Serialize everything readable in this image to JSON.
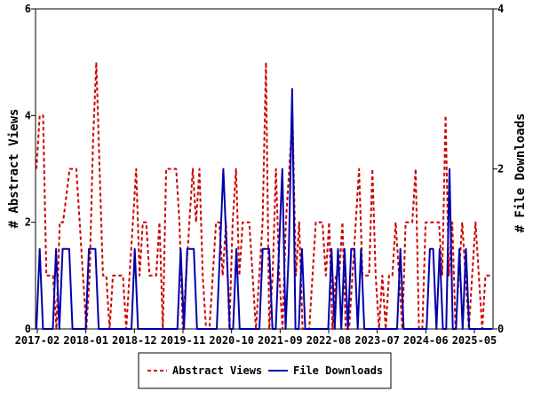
{
  "chart_data": {
    "type": "line",
    "x_tick_labels": [
      "2017-02",
      "2018-01",
      "2018-12",
      "2019-11",
      "2020-10",
      "2021-09",
      "2022-08",
      "2023-07",
      "2024-06",
      "2025-05"
    ],
    "ylabel_left": "# Abstract Views",
    "ylabel_right": "# File Downloads",
    "ylim_left": [
      0,
      6
    ],
    "ylim_right": [
      0,
      4
    ],
    "yticks_left": [
      "0",
      "2",
      "4",
      "6"
    ],
    "yticks_right": [
      "0",
      "2",
      "4"
    ],
    "legend_position": "bottom-center",
    "series": [
      {
        "name": "Abstract Views",
        "axis": "left",
        "color": "#cc0000",
        "style": "dashed",
        "values": [
          3,
          4,
          4,
          1,
          1,
          1,
          0,
          2,
          2,
          2.5,
          3,
          3,
          3,
          2,
          1,
          0,
          1,
          3.5,
          5,
          3,
          1,
          1,
          0,
          1,
          1,
          1,
          1,
          0,
          1,
          2,
          3,
          1,
          2,
          2,
          1,
          1,
          1,
          2,
          0,
          3,
          3,
          3,
          3,
          2,
          0,
          1,
          2,
          3,
          2,
          3,
          1,
          0,
          0,
          1,
          2,
          2,
          1,
          2,
          0,
          2,
          3,
          1,
          2,
          2,
          2,
          1,
          0,
          1,
          2,
          5,
          0,
          1,
          3,
          1,
          0,
          2,
          3,
          4,
          1,
          2,
          0,
          0,
          0,
          1,
          2,
          2,
          2,
          1,
          2,
          0,
          1,
          1,
          2,
          0,
          0,
          1,
          2,
          3,
          1,
          1,
          1,
          3,
          1,
          0,
          1,
          0,
          1,
          1,
          2,
          1,
          0,
          2,
          2,
          2,
          3,
          0,
          0,
          2,
          2,
          2,
          2,
          2,
          1,
          4,
          1,
          2,
          0,
          1,
          2,
          1,
          0,
          1,
          2,
          1,
          0,
          1,
          1,
          1
        ]
      },
      {
        "name": "File Downloads",
        "axis": "right",
        "color": "#0000aa",
        "style": "solid",
        "values": [
          0,
          1,
          0,
          0,
          0,
          0,
          1,
          0,
          1,
          1,
          1,
          0,
          0,
          0,
          0,
          0,
          1,
          1,
          1,
          0,
          0,
          0,
          0,
          0,
          0,
          0,
          0,
          0,
          0,
          0,
          1,
          0,
          0,
          0,
          0,
          0,
          0,
          0,
          0,
          0,
          0,
          0,
          0,
          0,
          1,
          0,
          1,
          1,
          1,
          0,
          0,
          0,
          0,
          0,
          0,
          0,
          1,
          2,
          1,
          0,
          0,
          1,
          0,
          0,
          0,
          0,
          0,
          0,
          0,
          1,
          1,
          1,
          0,
          0,
          1,
          2,
          0,
          1,
          3,
          0,
          0,
          1,
          0,
          0,
          0,
          0,
          0,
          0,
          0,
          0,
          1,
          0,
          1,
          0,
          1,
          0,
          1,
          1,
          0,
          1,
          0,
          0,
          0,
          0,
          0,
          0,
          0,
          0,
          0,
          0,
          0,
          1,
          0,
          0,
          0,
          0,
          0,
          0,
          0,
          0,
          1,
          1,
          0,
          1,
          0,
          0,
          2,
          0,
          0,
          1,
          0,
          1,
          0,
          0,
          0,
          0,
          0,
          0,
          0,
          0
        ]
      }
    ]
  }
}
